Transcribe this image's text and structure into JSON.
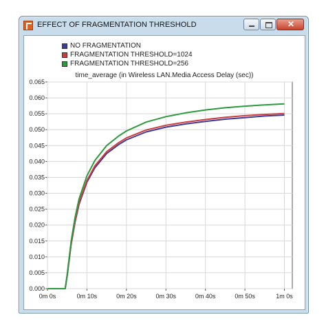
{
  "window": {
    "title": "EFFECT OF FRAGMENTATION THRESHOLD"
  },
  "controls": {
    "minimize": "minimize",
    "maximize": "maximize",
    "close": "✕"
  },
  "chart_data": {
    "type": "line",
    "title": "time_average (in Wireless LAN.Media Access Delay (sec))",
    "xlabel": "",
    "ylabel": "",
    "xlim": [
      0,
      62
    ],
    "ylim": [
      0,
      0.065
    ],
    "grid": true,
    "legend_position": "top-left",
    "x_ticks": [
      0,
      10,
      20,
      30,
      40,
      50,
      60
    ],
    "x_tick_labels": [
      "0m 0s",
      "0m 10s",
      "0m 20s",
      "0m 30s",
      "0m 40s",
      "0m 50s",
      "1m 0s"
    ],
    "y_ticks": [
      0,
      0.005,
      0.01,
      0.015,
      0.02,
      0.025,
      0.03,
      0.035,
      0.04,
      0.045,
      0.05,
      0.055,
      0.06,
      0.065
    ],
    "y_tick_labels": [
      "0.000",
      "0.005",
      "0.010",
      "0.015",
      "0.020",
      "0.025",
      "0.030",
      "0.035",
      "0.040",
      "0.045",
      "0.050",
      "0.055",
      "0.060",
      "0.065"
    ],
    "x": [
      0,
      4.5,
      5,
      6,
      7,
      8,
      10,
      12,
      15,
      18,
      20,
      25,
      30,
      35,
      40,
      45,
      50,
      55,
      60
    ],
    "series": [
      {
        "name": "NO FRAGMENTATION",
        "color": "#3b3b9a",
        "values": [
          0,
          0,
          0.004,
          0.014,
          0.021,
          0.0265,
          0.0335,
          0.038,
          0.0425,
          0.0453,
          0.0468,
          0.0493,
          0.0508,
          0.0518,
          0.0526,
          0.0533,
          0.0538,
          0.0543,
          0.0546
        ]
      },
      {
        "name": "FRAGMENTATION THRESHOLD=1024",
        "color": "#d03a3a",
        "values": [
          0,
          0,
          0.0042,
          0.0143,
          0.0214,
          0.027,
          0.034,
          0.0386,
          0.0431,
          0.0459,
          0.0474,
          0.0499,
          0.0514,
          0.0524,
          0.0532,
          0.0539,
          0.0544,
          0.0548,
          0.0551
        ]
      },
      {
        "name": "FRAGMENTATION THRESHOLD=256",
        "color": "#2a9a3a",
        "values": [
          0,
          0,
          0.0045,
          0.015,
          0.0225,
          0.0282,
          0.0355,
          0.0403,
          0.045,
          0.048,
          0.0496,
          0.0524,
          0.0541,
          0.0553,
          0.0562,
          0.0569,
          0.0574,
          0.0578,
          0.0581
        ]
      }
    ]
  }
}
